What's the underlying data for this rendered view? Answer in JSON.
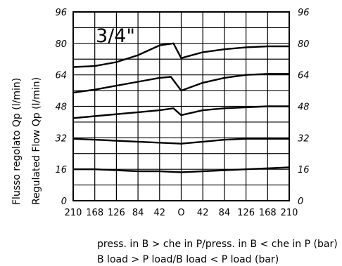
{
  "chart_data": {
    "type": "line",
    "title": "3/4\"",
    "ylabel_lines": [
      "Flusso regolato Qp (l/min)",
      "Regulated Flow Qp (l/min)"
    ],
    "xlabel_lines": [
      "press. in B > che in P/press. in B < che in P (bar)",
      "B load > P load/B load < P load (bar)"
    ],
    "x_tick_labels": [
      "210",
      "168",
      "126",
      "84",
      "42",
      "O",
      "42",
      "84",
      "126",
      "168",
      "210"
    ],
    "x": [
      -210,
      -168,
      -126,
      -84,
      -42,
      0,
      42,
      84,
      126,
      168,
      210
    ],
    "xlim": [
      -210,
      210
    ],
    "ylim": [
      0,
      96
    ],
    "y_ticks": [
      0,
      16,
      32,
      48,
      64,
      80,
      96
    ],
    "grid": true,
    "series": [
      {
        "values": [
          68,
          68.5,
          70.5,
          74,
          79,
          72.5,
          75.5,
          77,
          78,
          78.5,
          78.5
        ],
        "peak": [
          -15,
          80
        ]
      },
      {
        "values": [
          55,
          56.5,
          58.5,
          60.5,
          62.5,
          56,
          60,
          62.5,
          64,
          64.5,
          64.5
        ],
        "peak": [
          -20,
          63
        ]
      },
      {
        "values": [
          42,
          43,
          44,
          45,
          46,
          43.5,
          46,
          47,
          47.5,
          48,
          48
        ],
        "peak": [
          -15,
          47
        ]
      },
      {
        "values": [
          31.5,
          31,
          30.5,
          30,
          29.5,
          29,
          30,
          31,
          31.5,
          31.5,
          31.5
        ]
      },
      {
        "values": [
          16,
          16,
          15.5,
          15,
          15,
          14.5,
          15,
          15.5,
          16,
          16.5,
          17
        ]
      }
    ]
  }
}
